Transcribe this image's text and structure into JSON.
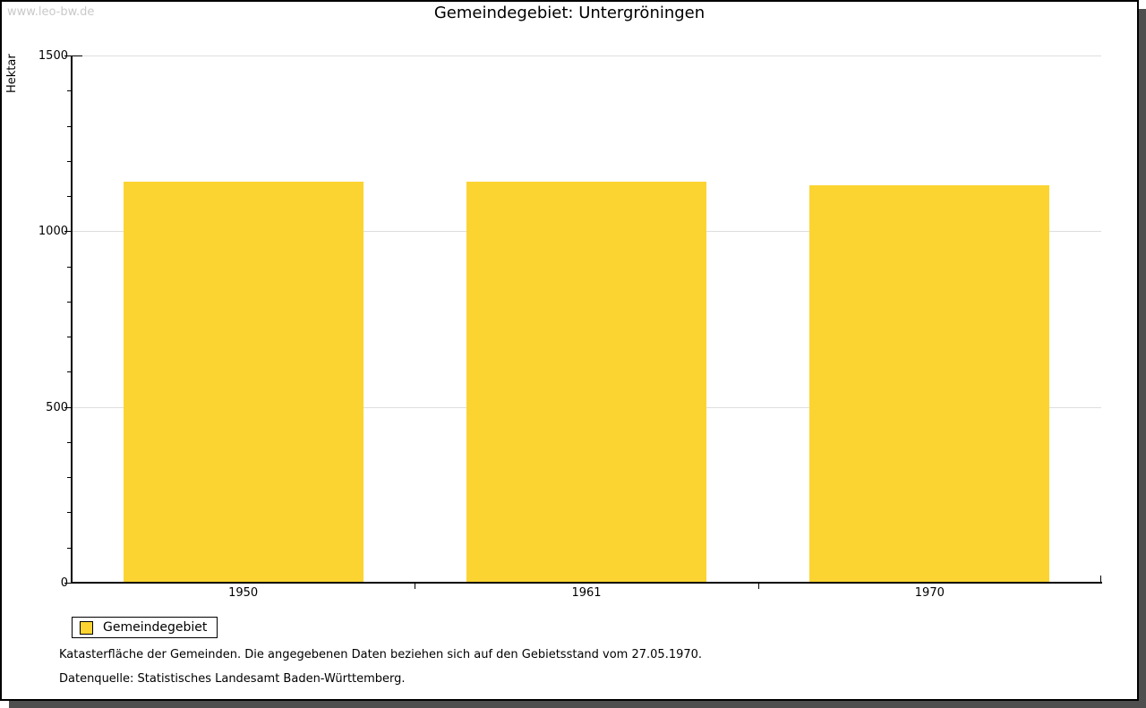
{
  "watermark": "www.leo-bw.de",
  "chart_data": {
    "type": "bar",
    "title": "Gemeindegebiet: Untergröningen",
    "ylabel": "Hektar",
    "xlabel": "",
    "categories": [
      "1950",
      "1961",
      "1970"
    ],
    "series": [
      {
        "name": "Gemeindegebiet",
        "color": "#FBD431",
        "values": [
          1142,
          1142,
          1131
        ]
      }
    ],
    "ylim": [
      0,
      1500
    ],
    "yticks_major": [
      0,
      500,
      1000,
      1500
    ],
    "ytick_minor_step": 100,
    "grid": "horizontal-major-lines",
    "legend_position": "below-plot-left"
  },
  "notes": {
    "line1": "Katasterfläche der Gemeinden. Die angegebenen Daten beziehen sich auf den Gebietsstand vom 27.05.1970.",
    "line2": "Datenquelle: Statistisches Landesamt Baden-Württemberg."
  },
  "colors": {
    "bar": "#FBD431",
    "grid": "#DEDEDE",
    "axis": "#000000",
    "text": "#000000",
    "watermark": "#C9C9C9",
    "window_shadow": "#4E4E4E",
    "background": "#FFFFFF"
  }
}
